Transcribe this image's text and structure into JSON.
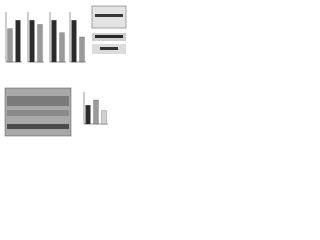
{
  "chart_data": [
    {
      "type": "bar",
      "values": [
        0.8,
        1.0
      ],
      "colors": [
        "#9a9a9a",
        "#2b2b2b"
      ],
      "ylim": [
        0,
        1.2
      ]
    },
    {
      "type": "bar",
      "values": [
        1.0,
        0.9
      ],
      "colors": [
        "#2b2b2b",
        "#9a9a9a"
      ],
      "ylim": [
        0,
        1.2
      ]
    },
    {
      "type": "bar",
      "values": [
        1.0,
        0.7
      ],
      "colors": [
        "#2b2b2b",
        "#9a9a9a"
      ],
      "ylim": [
        0,
        1.2
      ]
    },
    {
      "type": "bar",
      "values": [
        1.0,
        0.6
      ],
      "colors": [
        "#2b2b2b",
        "#9a9a9a"
      ],
      "ylim": [
        0,
        1.2
      ]
    },
    {
      "type": "bar",
      "values": [
        0.7,
        0.9,
        0.5
      ],
      "colors": [
        "#2b2b2b",
        "#9a9a9a",
        "#d0d0d0"
      ],
      "ylim": [
        0,
        1.2
      ]
    }
  ]
}
